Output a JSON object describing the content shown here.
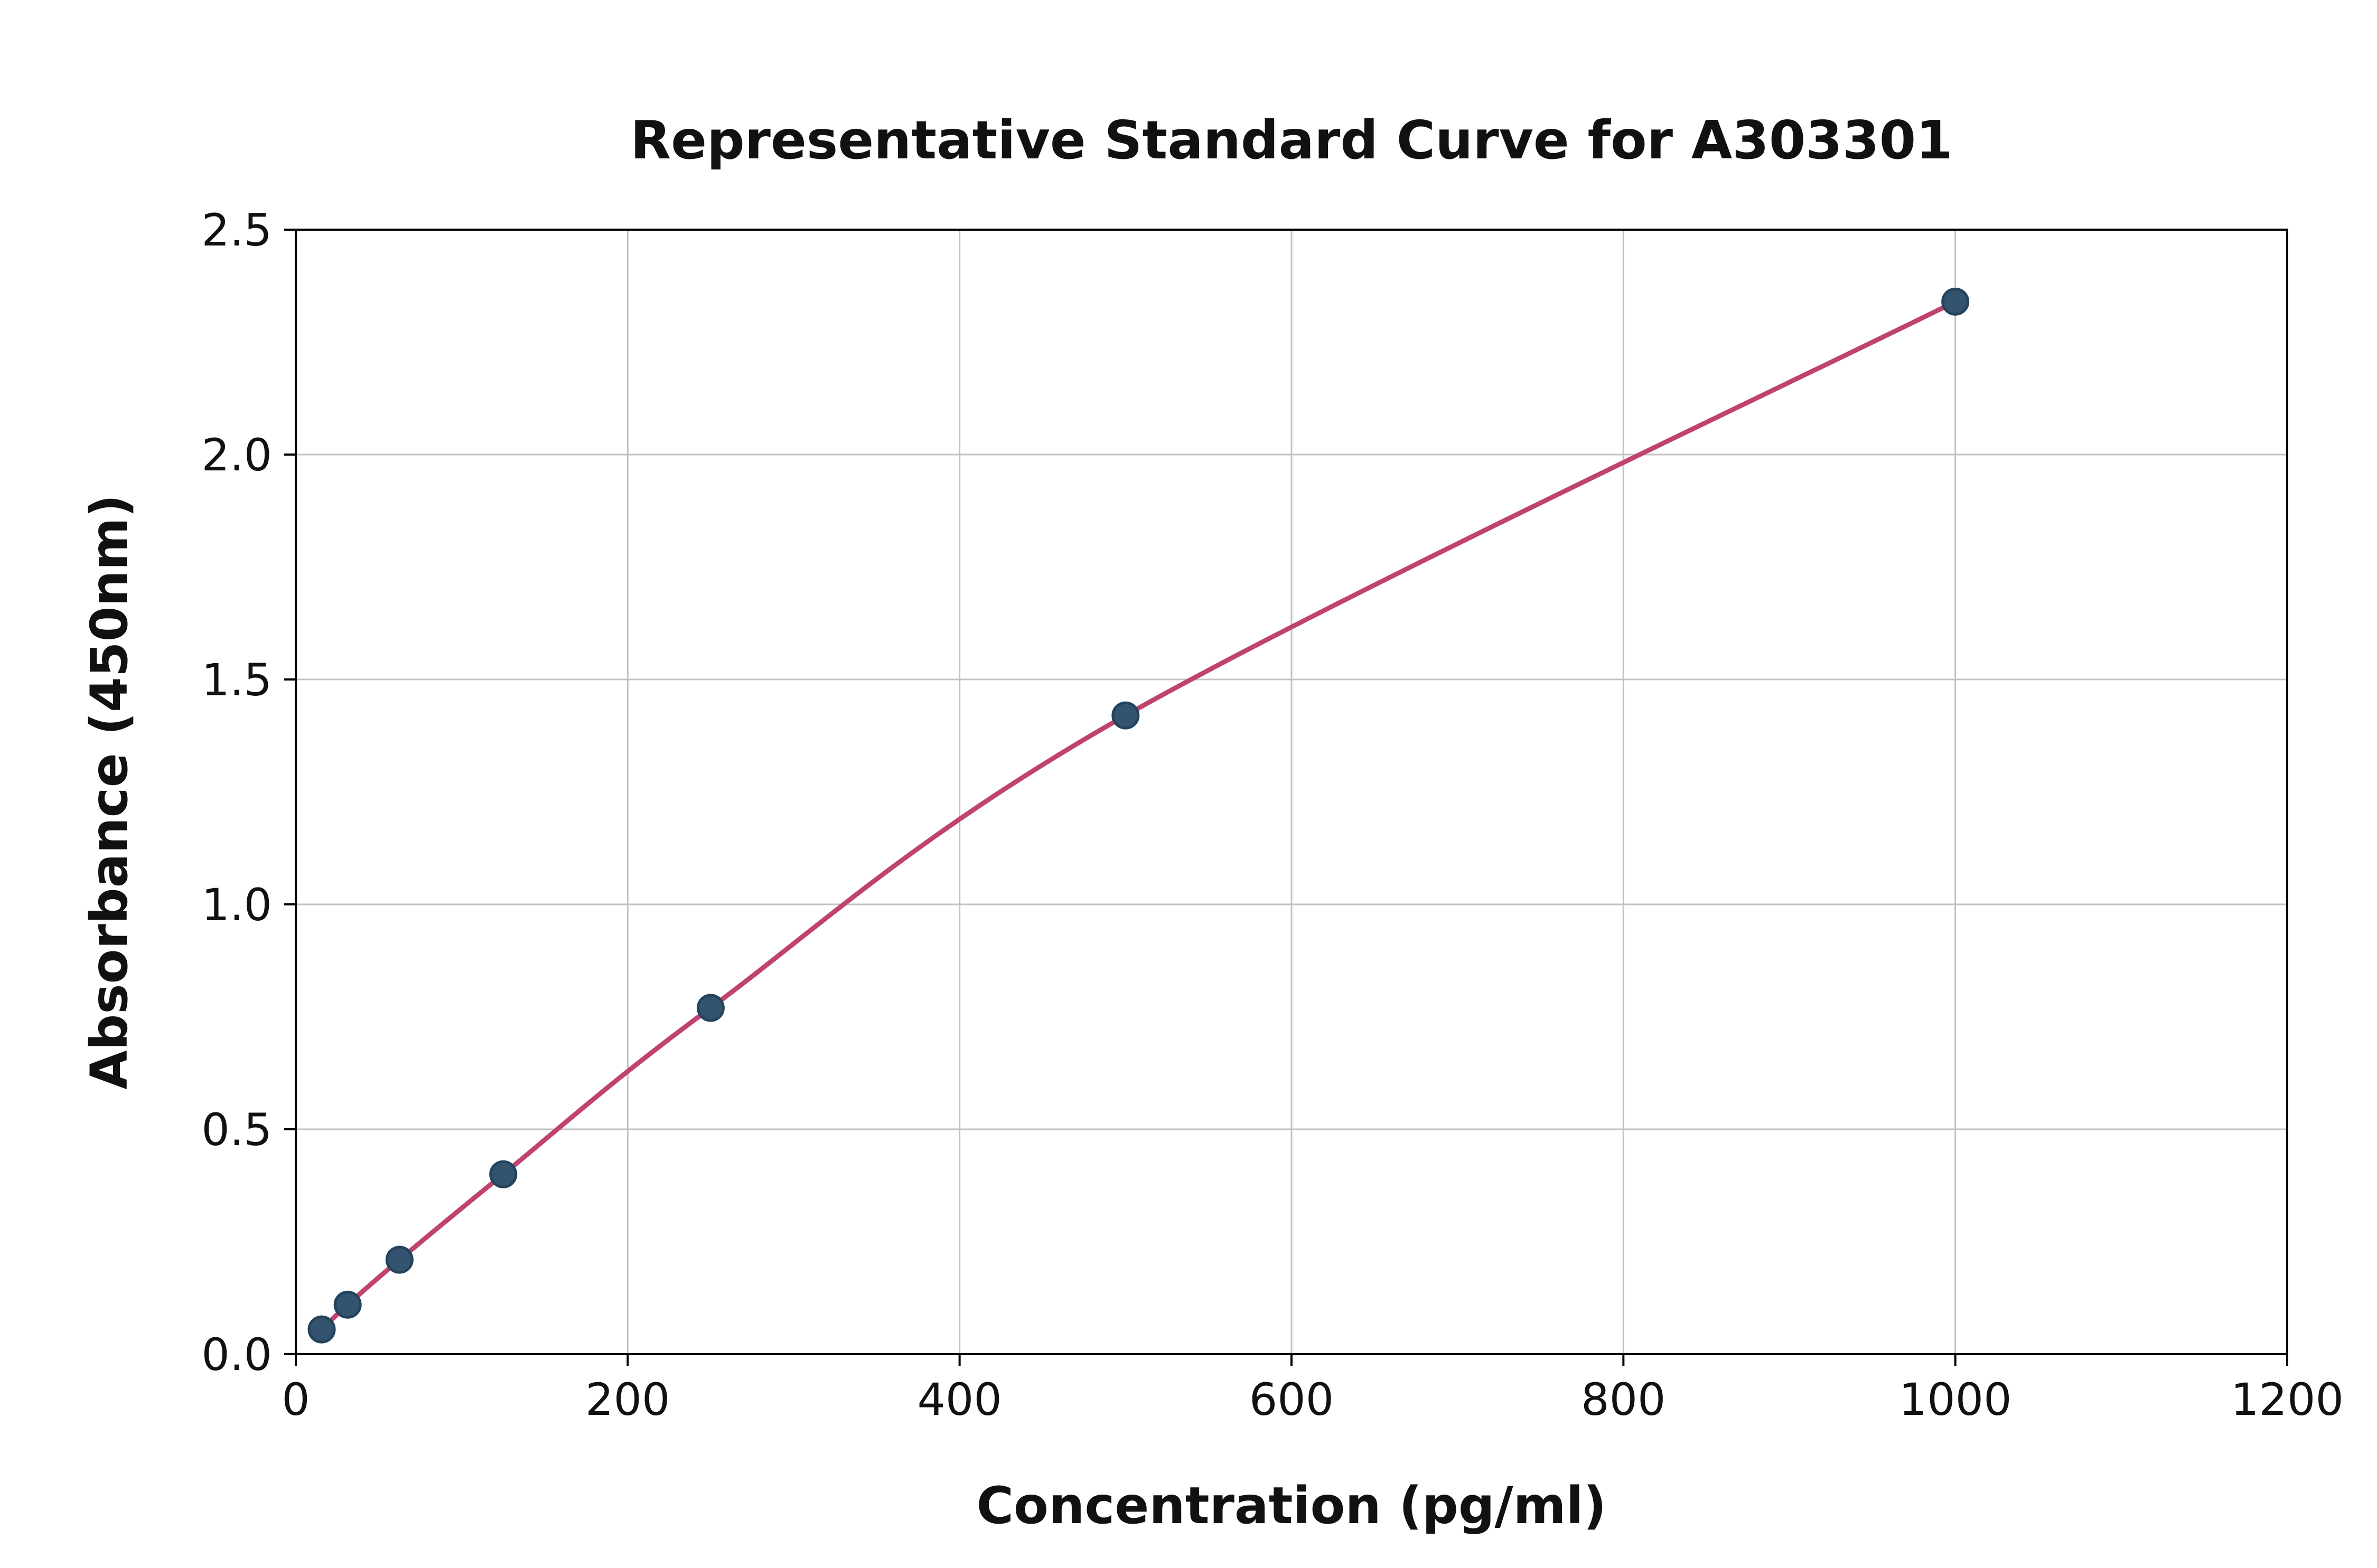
{
  "chart_data": {
    "type": "scatter",
    "title": "Representative Standard Curve for A303301",
    "xlabel": "Concentration (pg/ml)",
    "ylabel": "Absorbance (450nm)",
    "xlim": [
      0,
      1200
    ],
    "ylim": [
      0,
      2.5
    ],
    "x_ticks": [
      0,
      200,
      400,
      600,
      800,
      1000,
      1200
    ],
    "x_tick_labels": [
      "0",
      "200",
      "400",
      "600",
      "800",
      "1000",
      "1200"
    ],
    "y_ticks": [
      0.0,
      0.5,
      1.0,
      1.5,
      2.0,
      2.5
    ],
    "y_tick_labels": [
      "0.0",
      "0.5",
      "1.0",
      "1.5",
      "2.0",
      "2.5"
    ],
    "grid": true,
    "legend": "none",
    "points": [
      {
        "x": 15.6,
        "y": 0.055
      },
      {
        "x": 31.25,
        "y": 0.11
      },
      {
        "x": 62.5,
        "y": 0.21
      },
      {
        "x": 125,
        "y": 0.4
      },
      {
        "x": 250,
        "y": 0.77
      },
      {
        "x": 500,
        "y": 1.42
      },
      {
        "x": 1000,
        "y": 2.34
      }
    ],
    "colors": {
      "curve": "#c0436f",
      "point_fill": "#33536e",
      "point_edge": "#24435c",
      "grid": "#c2c2c2",
      "spine": "#000000",
      "text": "#111111"
    }
  }
}
